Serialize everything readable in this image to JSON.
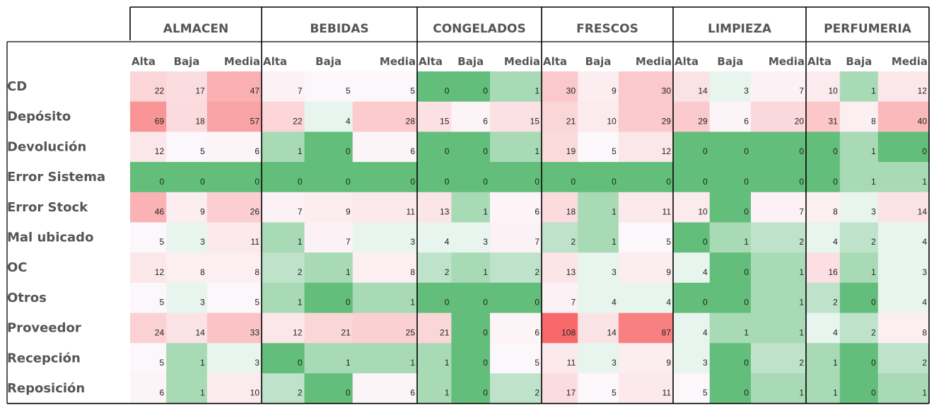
{
  "chart_data": {
    "type": "heatmap",
    "groups": [
      "ALMACEN",
      "BEBIDAS",
      "CONGELADOS",
      "FRESCOS",
      "LIMPIEZA",
      "PERFUMERIA"
    ],
    "subcategories": [
      "Alta",
      "Baja",
      "Media"
    ],
    "rows": [
      "CD",
      "Depósito",
      "Devolución",
      "Error Sistema",
      "Error Stock",
      "Mal ubicado",
      "OC",
      "Otros",
      "Proveedor",
      "Recepción",
      "Reposición"
    ],
    "values": [
      [
        22,
        17,
        47,
        7,
        5,
        5,
        0,
        0,
        1,
        30,
        9,
        30,
        14,
        3,
        7,
        10,
        1,
        12
      ],
      [
        69,
        18,
        57,
        22,
        4,
        28,
        15,
        6,
        15,
        21,
        10,
        29,
        29,
        6,
        20,
        31,
        8,
        40
      ],
      [
        12,
        5,
        6,
        1,
        0,
        6,
        0,
        0,
        1,
        19,
        5,
        12,
        0,
        0,
        0,
        0,
        1,
        0
      ],
      [
        0,
        0,
        0,
        0,
        0,
        0,
        0,
        0,
        0,
        0,
        0,
        0,
        0,
        0,
        0,
        0,
        1,
        1
      ],
      [
        46,
        9,
        26,
        7,
        9,
        11,
        13,
        1,
        6,
        18,
        1,
        11,
        10,
        0,
        7,
        8,
        3,
        14
      ],
      [
        5,
        3,
        11,
        1,
        7,
        3,
        4,
        3,
        7,
        2,
        1,
        5,
        0,
        1,
        2,
        4,
        2,
        4
      ],
      [
        12,
        8,
        8,
        2,
        1,
        8,
        2,
        1,
        2,
        13,
        3,
        9,
        4,
        0,
        1,
        16,
        1,
        3
      ],
      [
        5,
        3,
        5,
        1,
        0,
        1,
        0,
        0,
        0,
        7,
        4,
        4,
        0,
        0,
        1,
        2,
        0,
        4
      ],
      [
        24,
        14,
        33,
        12,
        21,
        25,
        21,
        0,
        6,
        108,
        14,
        87,
        4,
        1,
        1,
        4,
        2,
        8
      ],
      [
        5,
        1,
        3,
        0,
        1,
        1,
        1,
        0,
        5,
        11,
        3,
        9,
        3,
        0,
        2,
        1,
        0,
        2
      ],
      [
        6,
        1,
        10,
        2,
        0,
        6,
        1,
        0,
        2,
        17,
        5,
        11,
        5,
        0,
        1,
        1,
        0,
        1
      ]
    ],
    "color_scale": {
      "green": "#63be7b",
      "white": "#fcfcff",
      "red": "#f8696b",
      "max": 108
    },
    "legend": "none",
    "grid": false
  }
}
